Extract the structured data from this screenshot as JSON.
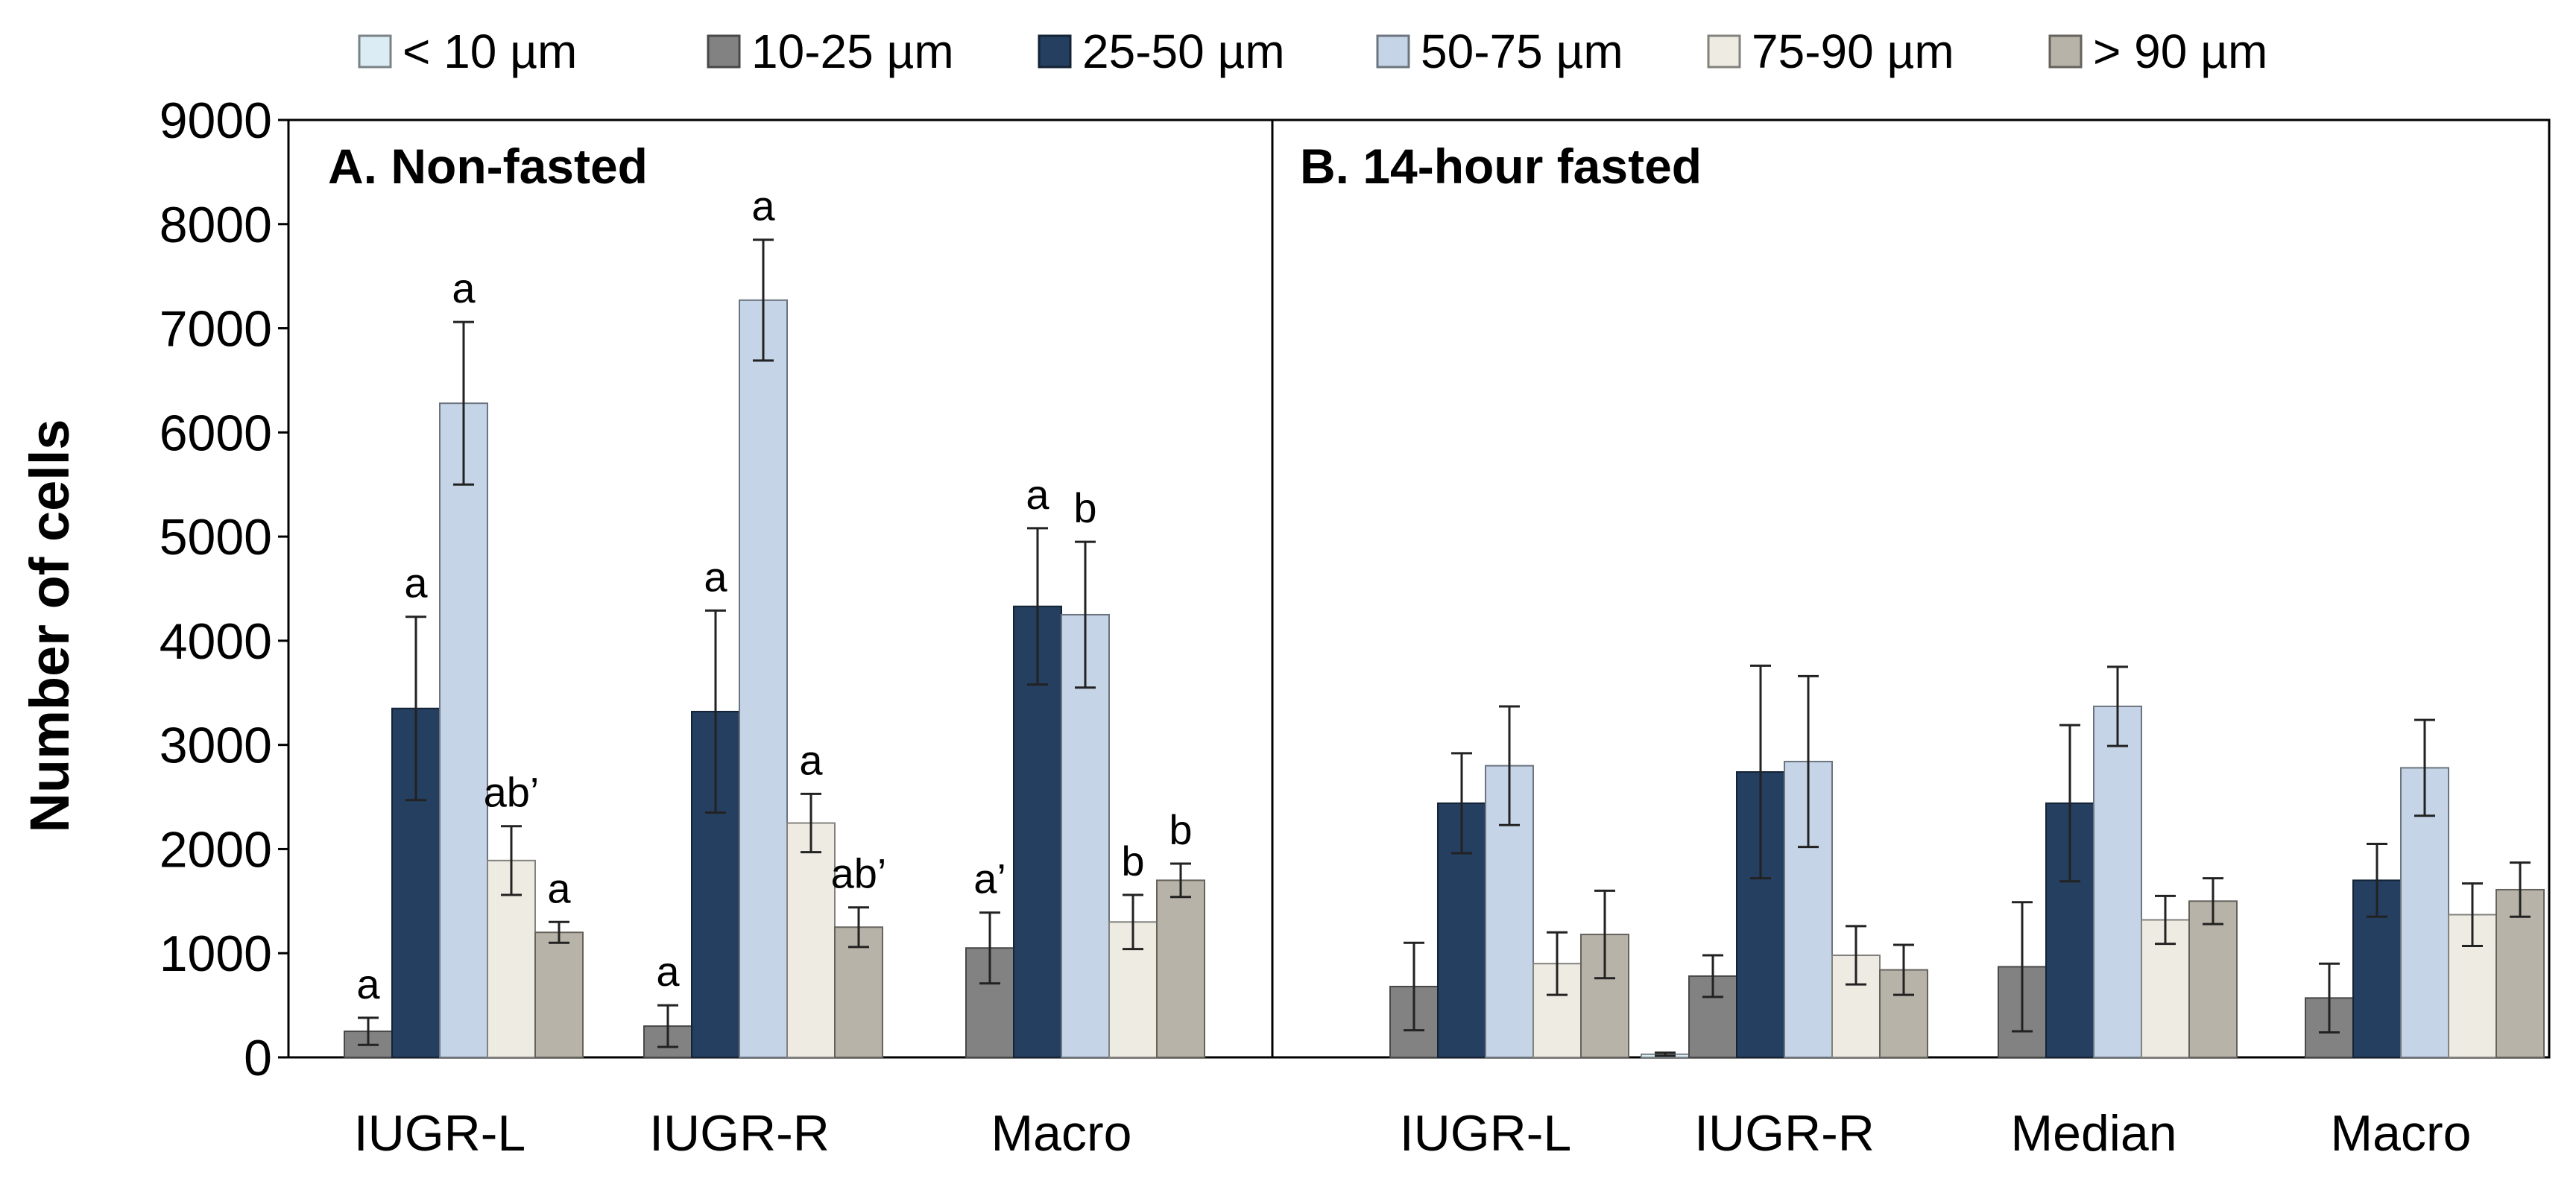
{
  "chart_data": {
    "type": "bar",
    "ylabel": "Number  of cells",
    "ylim": [
      0,
      9000
    ],
    "yticks": [
      0,
      1000,
      2000,
      3000,
      4000,
      5000,
      6000,
      7000,
      8000,
      9000
    ],
    "ytick_labels": [
      "0",
      "1000",
      "2000",
      "3000",
      "4000",
      "5000",
      "6000",
      "7000",
      "8000",
      "9000"
    ],
    "legend": {
      "placement": "top",
      "entries": [
        "< 10 µm",
        "10-25 µm",
        "25-50 µm",
        "50-75 µm",
        "75-90 µm",
        "> 90 µm"
      ]
    },
    "series_names": [
      "< 10 µm",
      "10-25 µm",
      "25-50 µm",
      "50-75 µm",
      "75-90 µm",
      "> 90 µm"
    ],
    "colors": {
      "< 10 µm": "#dcecf4",
      "10-25 µm": "#828282",
      "25-50 µm": "#243f60",
      "50-75 µm": "#c5d4e6",
      "75-90 µm": "#eeebe3",
      "> 90 µm": "#b7b3a8"
    },
    "panels": [
      {
        "title": "A.  Non-fasted",
        "categories": [
          {
            "name": "IUGR-L",
            "bars": [
              {
                "series": "10-25 µm",
                "value": 250,
                "err": 130,
                "label": "a"
              },
              {
                "series": "25-50 µm",
                "value": 3350,
                "err": 880,
                "label": "a"
              },
              {
                "series": "50-75 µm",
                "value": 6280,
                "err": 780,
                "label": "a"
              },
              {
                "series": "75-90 µm",
                "value": 1890,
                "err": 330,
                "label": "ab’"
              },
              {
                "series": "> 90 µm",
                "value": 1200,
                "err": 100,
                "label": "a"
              }
            ]
          },
          {
            "name": "IUGR-R",
            "bars": [
              {
                "series": "10-25 µm",
                "value": 300,
                "err": 200,
                "label": "a"
              },
              {
                "series": "25-50 µm",
                "value": 3320,
                "err": 970,
                "label": "a"
              },
              {
                "series": "50-75 µm",
                "value": 7270,
                "err": 580,
                "label": "a"
              },
              {
                "series": "75-90 µm",
                "value": 2250,
                "err": 280,
                "label": "a"
              },
              {
                "series": "> 90 µm",
                "value": 1250,
                "err": 190,
                "label": "ab’"
              }
            ]
          },
          {
            "name": "Macro",
            "bars": [
              {
                "series": "10-25 µm",
                "value": 1050,
                "err": 340,
                "label": "a’"
              },
              {
                "series": "25-50 µm",
                "value": 4330,
                "err": 750,
                "label": "a"
              },
              {
                "series": "50-75 µm",
                "value": 4250,
                "err": 700,
                "label": "b"
              },
              {
                "series": "75-90 µm",
                "value": 1300,
                "err": 260,
                "label": "b"
              },
              {
                "series": "> 90 µm",
                "value": 1700,
                "err": 160,
                "label": "b"
              }
            ]
          }
        ]
      },
      {
        "title": "B.  14-hour fasted",
        "categories": [
          {
            "name": "IUGR-L",
            "bars": [
              {
                "series": "10-25 µm",
                "value": 680,
                "err": 420
              },
              {
                "series": "25-50 µm",
                "value": 2440,
                "err": 480
              },
              {
                "series": "50-75 µm",
                "value": 2800,
                "err": 570
              },
              {
                "series": "75-90 µm",
                "value": 900,
                "err": 300
              },
              {
                "series": "> 90 µm",
                "value": 1180,
                "err": 420
              }
            ]
          },
          {
            "name": "IUGR-R",
            "bars": [
              {
                "series": "< 10 µm",
                "value": 30,
                "err": 15
              },
              {
                "series": "10-25 µm",
                "value": 780,
                "err": 200
              },
              {
                "series": "25-50 µm",
                "value": 2740,
                "err": 1020
              },
              {
                "series": "50-75 µm",
                "value": 2840,
                "err": 820
              },
              {
                "series": "75-90 µm",
                "value": 980,
                "err": 280
              },
              {
                "series": "> 90 µm",
                "value": 840,
                "err": 240
              }
            ]
          },
          {
            "name": "Median",
            "bars": [
              {
                "series": "10-25 µm",
                "value": 870,
                "err": 620
              },
              {
                "series": "25-50 µm",
                "value": 2440,
                "err": 750
              },
              {
                "series": "50-75 µm",
                "value": 3370,
                "err": 380
              },
              {
                "series": "75-90 µm",
                "value": 1320,
                "err": 230
              },
              {
                "series": "> 90 µm",
                "value": 1500,
                "err": 220
              }
            ]
          },
          {
            "name": "Macro",
            "bars": [
              {
                "series": "10-25 µm",
                "value": 570,
                "err": 330
              },
              {
                "series": "25-50 µm",
                "value": 1700,
                "err": 350
              },
              {
                "series": "50-75 µm",
                "value": 2780,
                "err": 460
              },
              {
                "series": "75-90 µm",
                "value": 1370,
                "err": 300
              },
              {
                "series": "> 90 µm",
                "value": 1610,
                "err": 260
              }
            ]
          }
        ]
      }
    ]
  }
}
